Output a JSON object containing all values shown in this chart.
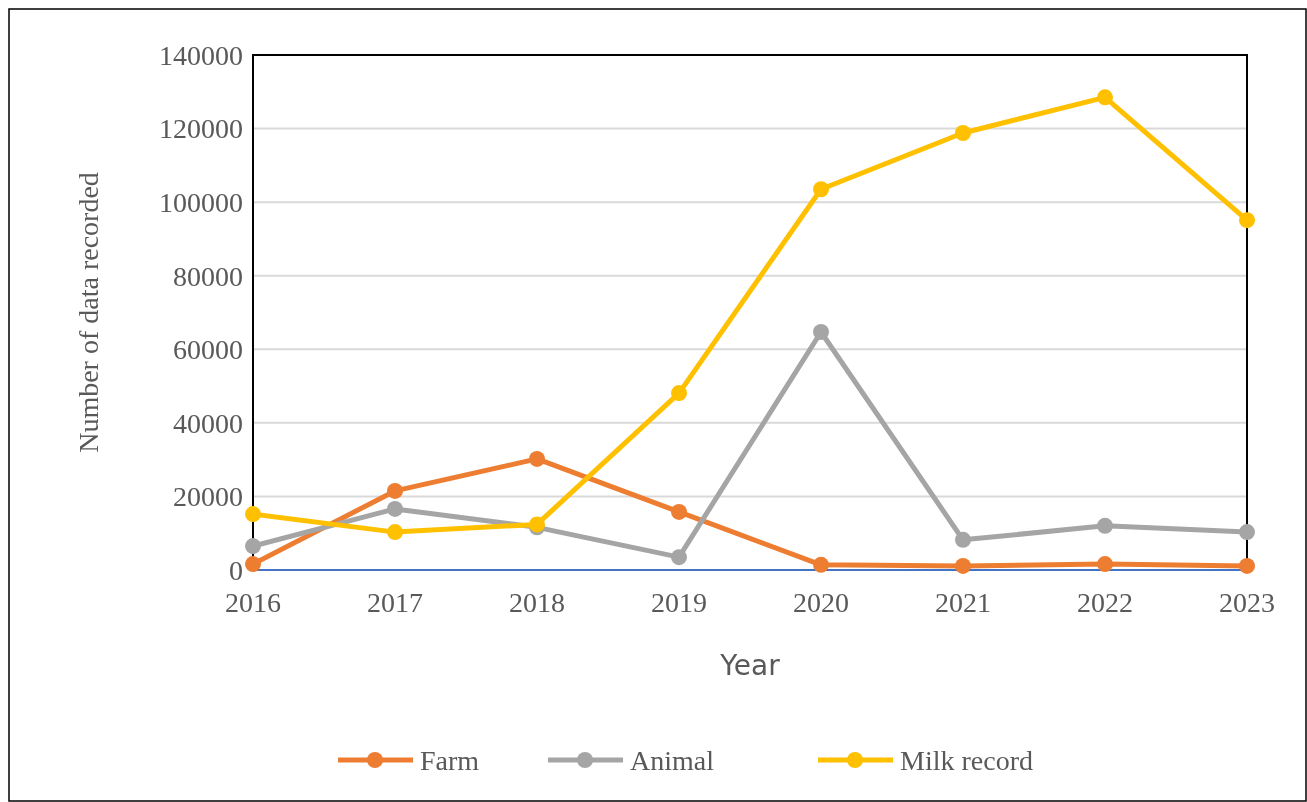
{
  "chart_data": {
    "type": "line",
    "xlabel": "Year",
    "ylabel": "Number of data recorded",
    "categories": [
      "2016",
      "2017",
      "2018",
      "2019",
      "2020",
      "2021",
      "2022",
      "2023"
    ],
    "series": [
      {
        "name": "Farm",
        "color": "#ed7d31",
        "values": [
          1600,
          21500,
          30200,
          15800,
          1400,
          1100,
          1600,
          1100
        ]
      },
      {
        "name": "Animal",
        "color": "#a5a5a5",
        "values": [
          6500,
          16600,
          11600,
          3500,
          64700,
          8200,
          12000,
          10300
        ]
      },
      {
        "name": "Milk record",
        "color": "#ffc000",
        "values": [
          15200,
          10300,
          12400,
          48100,
          103500,
          118800,
          128500,
          95100
        ]
      }
    ],
    "ylim": [
      0,
      140000
    ],
    "yticks": [
      0,
      20000,
      40000,
      60000,
      80000,
      100000,
      120000,
      140000
    ],
    "grid": "y",
    "legend": "bottom",
    "marker": "circle",
    "line_style": "solid"
  }
}
